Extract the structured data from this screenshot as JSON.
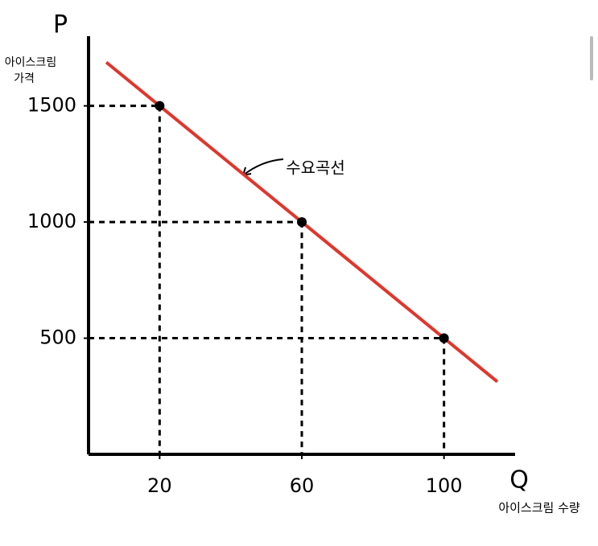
{
  "chart_data": {
    "type": "line",
    "y_symbol": "P",
    "y_label_lines": [
      "아이스크림",
      "가격"
    ],
    "x_symbol": "Q",
    "x_label": "아이스크림 수량",
    "annotation": "수요곡선",
    "xlim": [
      0,
      120
    ],
    "ylim": [
      0,
      1800
    ],
    "xticks": [
      20,
      60,
      100
    ],
    "yticks": [
      500,
      1000,
      1500
    ],
    "series": [
      {
        "name": "수요곡선",
        "color": "#e0362c",
        "x": [
          5,
          115
        ],
        "values": [
          1687.5,
          312.5
        ]
      }
    ],
    "points": {
      "x": [
        20,
        60,
        100
      ],
      "values": [
        1500,
        1000,
        500
      ]
    }
  }
}
